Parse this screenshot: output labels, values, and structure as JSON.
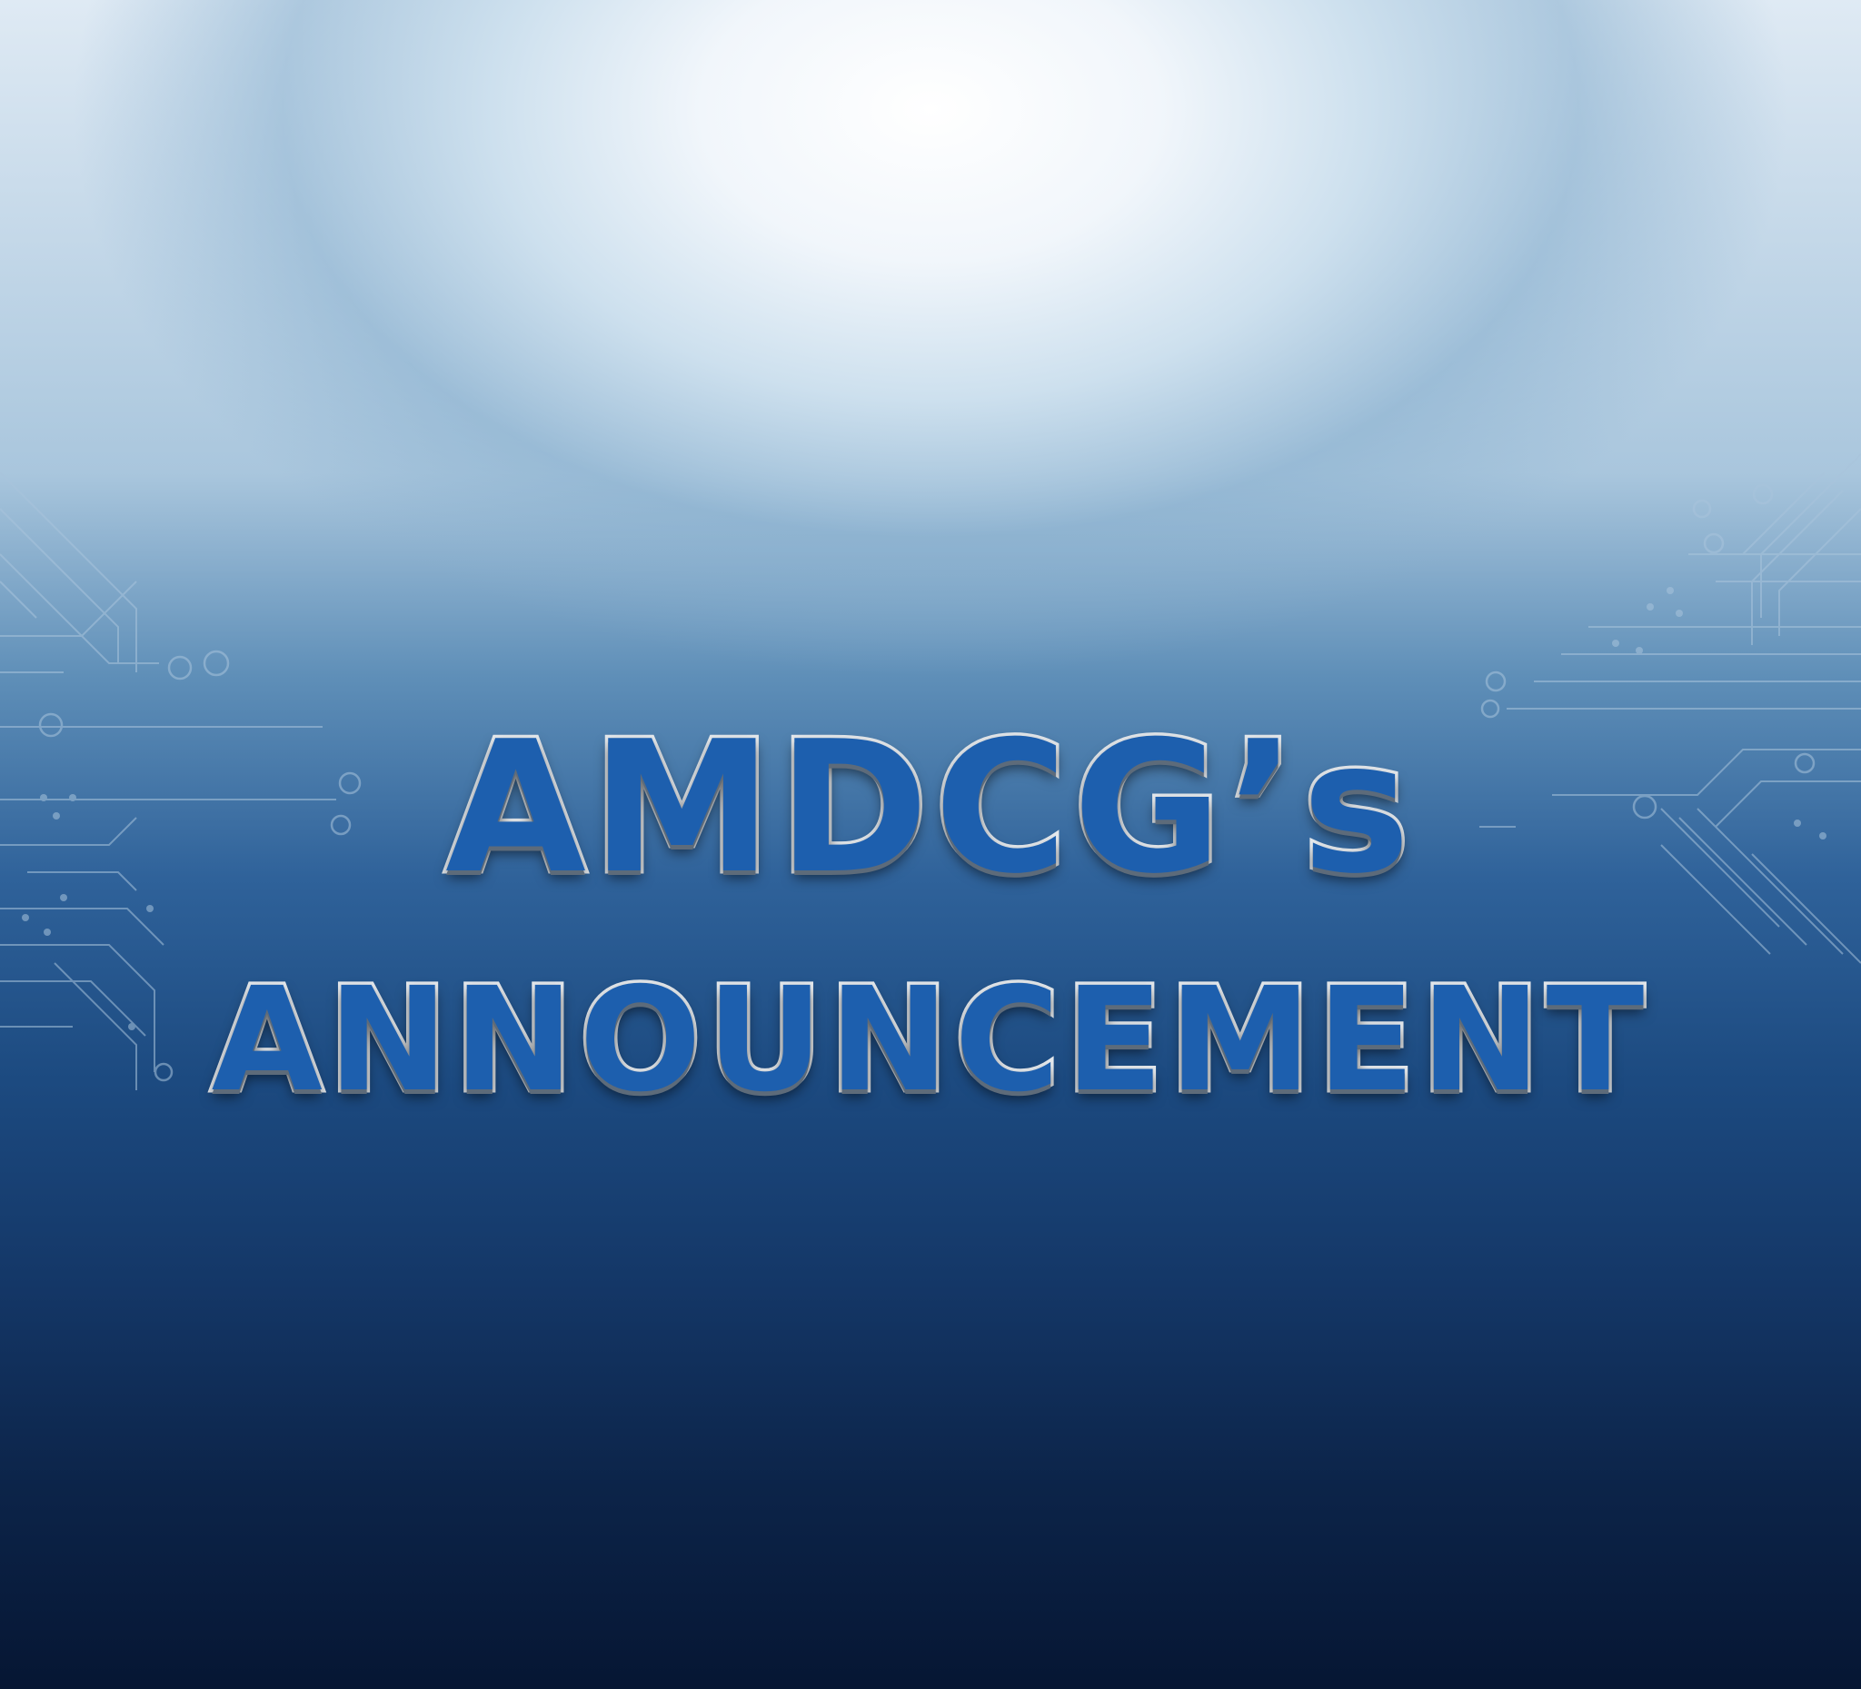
{
  "headline": {
    "line1": "AMDCG’s",
    "line2": "ANNOUNCEMENT"
  },
  "colors": {
    "text_fill": "#1d5fae",
    "text_outline": "#e6eaee",
    "background_top": "#ffffff",
    "background_bottom": "#061633",
    "circuit_lines": "#a9c4dc"
  },
  "decorations": {
    "left": "circuit-board-pattern",
    "right": "circuit-board-pattern"
  }
}
